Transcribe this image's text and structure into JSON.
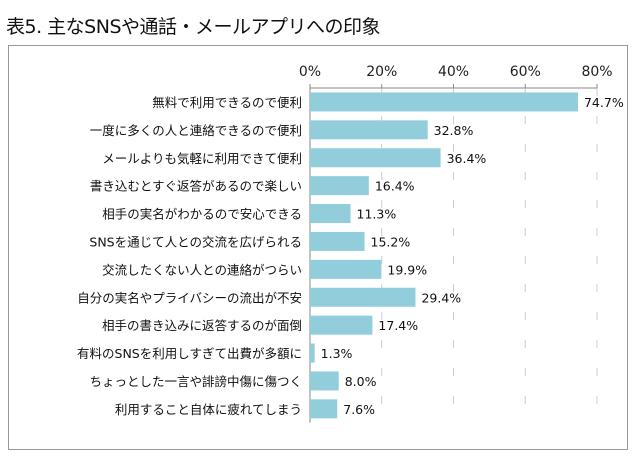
{
  "title": "表5. 主なSNSや通話・メールアプリへの印象",
  "chart_data": {
    "type": "bar",
    "orientation": "horizontal",
    "categories": [
      "無料で利用できるので便利",
      "一度に多くの人と連絡できるので便利",
      "メールよりも気軽に利用できて便利",
      "書き込むとすぐ返答があるので楽しい",
      "相手の実名がわかるので安心できる",
      "SNSを通じて人との交流を広げられる",
      "交流したくない人との連絡がつらい",
      "自分の実名やプライバシーの流出が不安",
      "相手の書き込みに返答するのが面倒",
      "有料のSNSを利用しすぎて出費が多額に",
      "ちょっとした一言や誹謗中傷に傷つく",
      "利用すること自体に疲れてしまう"
    ],
    "values": [
      74.7,
      32.8,
      36.4,
      16.4,
      11.3,
      15.2,
      19.9,
      29.4,
      17.4,
      1.3,
      8.0,
      7.6
    ],
    "data_labels": [
      "74.7%",
      "32.8%",
      "36.4%",
      "16.4%",
      "11.3%",
      "15.2%",
      "19.9%",
      "29.4%",
      "17.4%",
      "1.3%",
      "8.0%",
      "7.6%"
    ],
    "xticks": [
      "0%",
      "20%",
      "40%",
      "60%",
      "80%"
    ],
    "xlim": [
      0,
      80
    ],
    "axis_position": "top",
    "grid": true,
    "bar_color": "#92CDDC"
  }
}
